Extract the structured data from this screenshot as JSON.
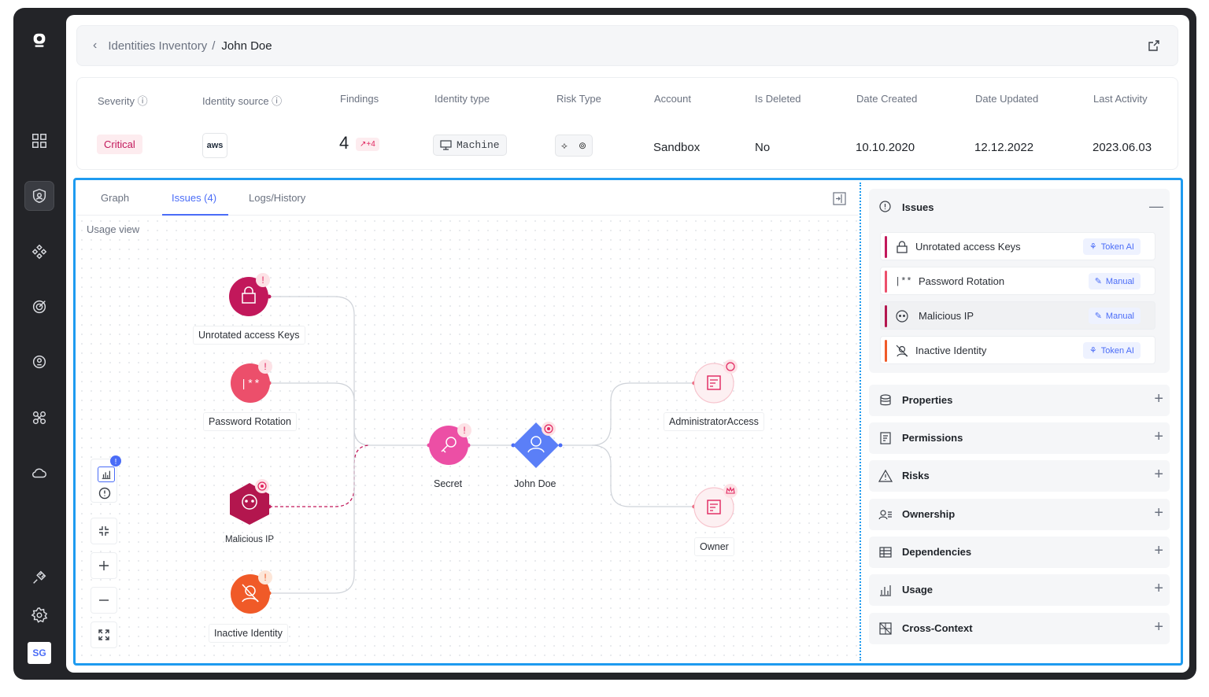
{
  "app": {
    "avatar_initials": "SG"
  },
  "sidebar": {
    "icons": [
      "logo-icon",
      "dashboard-icon",
      "identity-shield-icon",
      "network-icon",
      "target-icon",
      "coin-icon",
      "integrations-icon",
      "cloud-icon",
      "plugin-icon",
      "settings-icon"
    ]
  },
  "breadcrumb": {
    "parent": "Identities Inventory",
    "separator": "/",
    "current": "John Doe"
  },
  "summary": {
    "severity_header": "Severity",
    "severity_value": "Critical",
    "source_header": "Identity source",
    "source_value": "aws",
    "findings_header": "Findings",
    "findings_value": "4",
    "findings_delta": "↗+4",
    "type_header": "Identity type",
    "type_value": "Machine",
    "risk_header": "Risk Type",
    "account_header": "Account",
    "account_value": "Sandbox",
    "deleted_header": "Is Deleted",
    "deleted_value": "No",
    "created_header": "Date Created",
    "created_value": "10.10.2020",
    "updated_header": "Date Updated",
    "updated_value": "12.12.2022",
    "activity_header": "Last Activity",
    "activity_value": "2023.06.03"
  },
  "tabs": {
    "graph": "Graph",
    "issues": "Issues (4)",
    "logs": "Logs/History"
  },
  "canvas": {
    "view_label": "Usage view",
    "nodes": {
      "unrotated": "Unrotated access Keys",
      "password": "Password Rotation",
      "malicious": "Malicious IP",
      "inactive": "Inactive Identity",
      "secret": "Secret",
      "john": "John Doe",
      "admin": "AdministratorAccess",
      "owner": "Owner"
    },
    "tools_badge": "!"
  },
  "issues_panel": {
    "title": "Issues",
    "items": [
      {
        "label": "Unrotated access Keys",
        "tag": "Token AI",
        "color": "#c2185b"
      },
      {
        "label": "Password Rotation",
        "tag": "Manual",
        "color": "#ec4f6b"
      },
      {
        "label": "Malicious IP",
        "tag": "Manual",
        "color": "#b3164e"
      },
      {
        "label": "Inactive Identity",
        "tag": "Token AI",
        "color": "#f05a28"
      }
    ]
  },
  "sections": [
    "Properties",
    "Permissions",
    "Risks",
    "Ownership",
    "Dependencies",
    "Usage",
    "Cross-Context"
  ],
  "colors": {
    "accent": "#4a6cf7",
    "selection": "#1e9bf0",
    "critical": "#c2185b"
  }
}
